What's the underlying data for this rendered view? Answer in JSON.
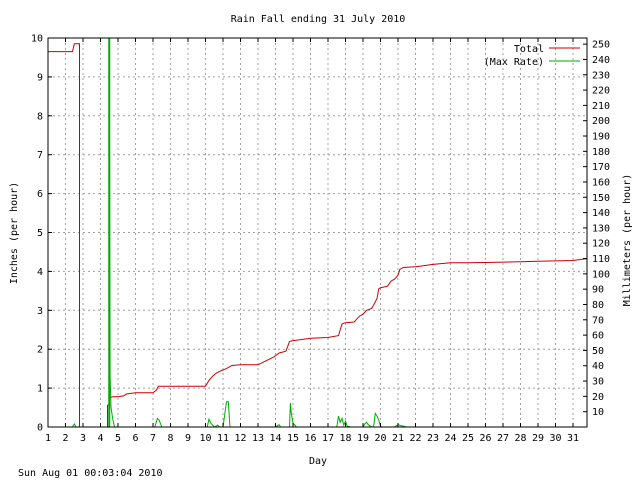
{
  "chart_data": {
    "type": "line",
    "title": "Rain Fall ending 31 July 2010",
    "xlabel": "Day",
    "ylabel": "Inches (per hour)",
    "y2label": "Millimeters (per hour)",
    "footer": "Sun Aug 01 00:03:04 2010",
    "xlim": [
      1,
      31.8
    ],
    "ylim": [
      0,
      10
    ],
    "y2lim": [
      0,
      254
    ],
    "x_ticks": [
      "1",
      "2",
      "3",
      "4",
      "5",
      "6",
      "7",
      "8",
      "9",
      "10",
      "11",
      "12",
      "13",
      "14",
      "15",
      "16",
      "17",
      "18",
      "19",
      "20",
      "21",
      "22",
      "23",
      "24",
      "25",
      "26",
      "27",
      "28",
      "29",
      "30",
      "31"
    ],
    "y_ticks": [
      "0",
      "1",
      "2",
      "3",
      "4",
      "5",
      "6",
      "7",
      "8",
      "9",
      "10"
    ],
    "y2_ticks": [
      "10",
      "20",
      "30",
      "40",
      "50",
      "60",
      "70",
      "80",
      "90",
      "100",
      "110",
      "120",
      "130",
      "140",
      "150",
      "160",
      "170",
      "180",
      "190",
      "200",
      "210",
      "220",
      "230",
      "240",
      "250"
    ],
    "grid": true,
    "legend_position": "top-right",
    "series": [
      {
        "name": "Total",
        "color": "#cc0000",
        "x": [
          1.0,
          2.4,
          2.5,
          2.8,
          2.8,
          4.4,
          4.4,
          4.5,
          4.5,
          4.7,
          5.0,
          5.3,
          5.4,
          5.5,
          6.0,
          7.0,
          7.2,
          7.3,
          8.0,
          9.0,
          10.0,
          10.2,
          10.4,
          10.6,
          10.9,
          11.2,
          11.5,
          12.0,
          13.0,
          13.9,
          14.2,
          14.6,
          14.8,
          15.0,
          15.5,
          16.0,
          17.0,
          17.6,
          17.8,
          18.0,
          18.5,
          18.8,
          19.0,
          19.2,
          19.5,
          19.8,
          19.9,
          20.0,
          20.2,
          20.4,
          20.6,
          20.8,
          21.0,
          21.1,
          21.3,
          22.0,
          22.5,
          23.0,
          24.0,
          25.0,
          26.0,
          27.0,
          28.0,
          29.0,
          30.0,
          31.0,
          31.8
        ],
        "values": [
          9.65,
          9.65,
          9.85,
          9.85,
          0.0,
          0.0,
          0.55,
          0.6,
          0.75,
          0.78,
          0.78,
          0.8,
          0.82,
          0.85,
          0.88,
          0.88,
          0.95,
          1.05,
          1.05,
          1.05,
          1.05,
          1.2,
          1.3,
          1.38,
          1.45,
          1.5,
          1.58,
          1.6,
          1.6,
          1.8,
          1.9,
          1.95,
          2.2,
          2.22,
          2.25,
          2.28,
          2.3,
          2.35,
          2.65,
          2.68,
          2.7,
          2.85,
          2.9,
          3.0,
          3.05,
          3.3,
          3.55,
          3.58,
          3.6,
          3.62,
          3.75,
          3.8,
          3.9,
          4.05,
          4.1,
          4.12,
          4.15,
          4.18,
          4.22,
          4.22,
          4.23,
          4.24,
          4.25,
          4.26,
          4.27,
          4.28,
          4.33
        ]
      },
      {
        "name": "(Max Rate)",
        "color": "#00aa00",
        "x": [
          1.0,
          2.4,
          2.5,
          2.6,
          4.5,
          4.5,
          4.55,
          4.6,
          4.7,
          4.8,
          5.0,
          7.1,
          7.25,
          7.35,
          7.5,
          10.1,
          10.2,
          10.3,
          10.5,
          10.7,
          10.8,
          11.0,
          11.2,
          11.3,
          11.4,
          11.5,
          14.0,
          14.2,
          14.3,
          14.8,
          14.85,
          14.9,
          15.0,
          15.2,
          17.5,
          17.6,
          17.7,
          17.8,
          17.9,
          18.0,
          18.1,
          18.3,
          19.0,
          19.1,
          19.2,
          19.3,
          19.5,
          19.6,
          19.7,
          19.8,
          19.9,
          20.0,
          20.1,
          20.4,
          20.8,
          21.0,
          21.2,
          21.5,
          31.8
        ],
        "values": [
          0.0,
          0.0,
          0.08,
          0.0,
          0.0,
          10.0,
          1.3,
          0.5,
          0.2,
          0.0,
          0.0,
          0.0,
          0.22,
          0.18,
          0.0,
          0.0,
          0.2,
          0.1,
          0.0,
          0.05,
          0.0,
          0.0,
          0.65,
          0.65,
          0.0,
          0.0,
          0.0,
          0.06,
          0.0,
          0.0,
          0.62,
          0.35,
          0.1,
          0.0,
          0.0,
          0.28,
          0.12,
          0.22,
          0.05,
          0.15,
          0.02,
          0.0,
          0.0,
          0.08,
          0.12,
          0.06,
          0.0,
          0.0,
          0.35,
          0.28,
          0.18,
          0.02,
          0.0,
          0.0,
          0.0,
          0.06,
          0.03,
          0.0,
          0.0
        ]
      }
    ]
  }
}
